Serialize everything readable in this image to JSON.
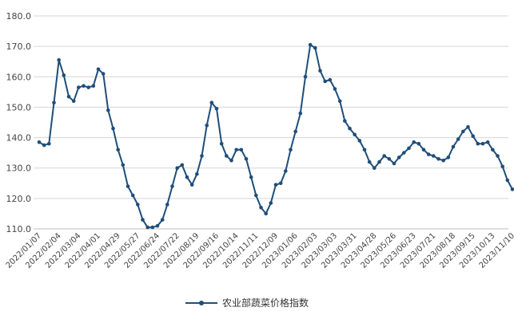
{
  "chart_data": {
    "type": "line",
    "title": "",
    "xlabel": "",
    "ylabel": "",
    "ylim": [
      110,
      180
    ],
    "yticks": [
      "110.0",
      "120.0",
      "130.0",
      "140.0",
      "150.0",
      "160.0",
      "170.0",
      "180.0"
    ],
    "grid": true,
    "legend_position": "bottom",
    "line_color": "#1f4e79",
    "xtick_labels": [
      "2022/01/07",
      "2022/02/04",
      "2022/03/04",
      "2022/04/01",
      "2022/04/29",
      "2022/05/27",
      "2022/06/24",
      "2022/07/22",
      "2022/08/19",
      "2022/09/16",
      "2022/10/14",
      "2022/11/11",
      "2022/12/09",
      "2023/01/06",
      "2023/02/03",
      "2023/03/03",
      "2023/03/31",
      "2023/04/28",
      "2023/05/26",
      "2023/06/23",
      "2023/07/21",
      "2023/08/18",
      "2023/09/15",
      "2023/10/13",
      "2023/11/10"
    ],
    "series": [
      {
        "name": "农业部蔬菜价格指数",
        "values": [
          138.5,
          137.5,
          138.0,
          151.5,
          165.5,
          160.5,
          153.5,
          152.0,
          156.5,
          157.0,
          156.5,
          157.0,
          162.5,
          161.0,
          149.0,
          143.0,
          136.0,
          131.0,
          124.0,
          121.0,
          118.0,
          113.0,
          110.5,
          110.5,
          111.0,
          113.0,
          118.0,
          124.0,
          130.0,
          131.0,
          127.0,
          124.5,
          128.0,
          134.0,
          144.0,
          151.5,
          149.5,
          138.0,
          134.0,
          132.5,
          136.0,
          136.0,
          133.0,
          127.0,
          121.0,
          117.0,
          115.0,
          118.5,
          124.5,
          125.0,
          129.0,
          136.0,
          142.0,
          148.0,
          160.0,
          170.5,
          169.5,
          162.0,
          158.5,
          159.0,
          156.0,
          152.0,
          145.5,
          143.0,
          141.0,
          139.0,
          136.0,
          132.0,
          130.0,
          132.0,
          134.0,
          133.0,
          131.5,
          133.5,
          135.0,
          136.5,
          138.5,
          138.0,
          136.0,
          134.5,
          134.0,
          133.0,
          132.5,
          133.5,
          137.0,
          139.5,
          142.0,
          143.5,
          140.5,
          138.0,
          138.0,
          138.5,
          136.0,
          134.0,
          130.5,
          126.0,
          123.0
        ]
      }
    ]
  }
}
